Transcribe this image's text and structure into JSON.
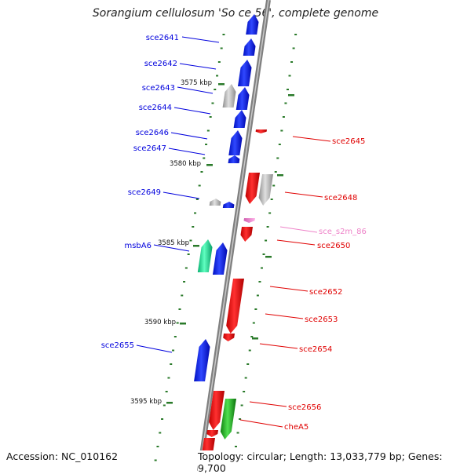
{
  "title": "Sorangium cellulosum 'So ce 56', complete genome",
  "footer": {
    "accession": "Accession: NC_010162",
    "topology": "Topology: circular; Length: 13,033,779 bp; Genes: 9,700"
  },
  "colors": {
    "backbone": "#8a8a8a",
    "tick": "#2a7a2a",
    "blue": "#0010e8",
    "red": "#ee0000",
    "gray": "#a8a8a8",
    "teal": "#10d898",
    "green": "#18b018",
    "pink": "#ee82c8"
  },
  "kbp_markers": [
    "3575 kbp",
    "3580 kbp",
    "3585 kbp",
    "3590 kbp",
    "3595 kbp"
  ],
  "genes_left": [
    {
      "name": "sce2641",
      "color": "blue"
    },
    {
      "name": "sce2642",
      "color": "blue"
    },
    {
      "name": "sce2643",
      "color": "blue"
    },
    {
      "name": "sce2644",
      "color": "blue"
    },
    {
      "name": "sce2646",
      "color": "blue"
    },
    {
      "name": "sce2647",
      "color": "blue"
    },
    {
      "name": "sce2649",
      "color": "blue"
    },
    {
      "name": "msbA6",
      "color": "blue"
    },
    {
      "name": "sce2655",
      "color": "blue"
    }
  ],
  "genes_right": [
    {
      "name": "sce2645",
      "color": "red"
    },
    {
      "name": "sce2648",
      "color": "red"
    },
    {
      "name": "sce_s2m_86",
      "color": "pink"
    },
    {
      "name": "sce2650",
      "color": "red"
    },
    {
      "name": "sce2652",
      "color": "red"
    },
    {
      "name": "sce2653",
      "color": "red"
    },
    {
      "name": "sce2654",
      "color": "red"
    },
    {
      "name": "sce2656",
      "color": "red"
    },
    {
      "name": "cheA5",
      "color": "red"
    }
  ]
}
